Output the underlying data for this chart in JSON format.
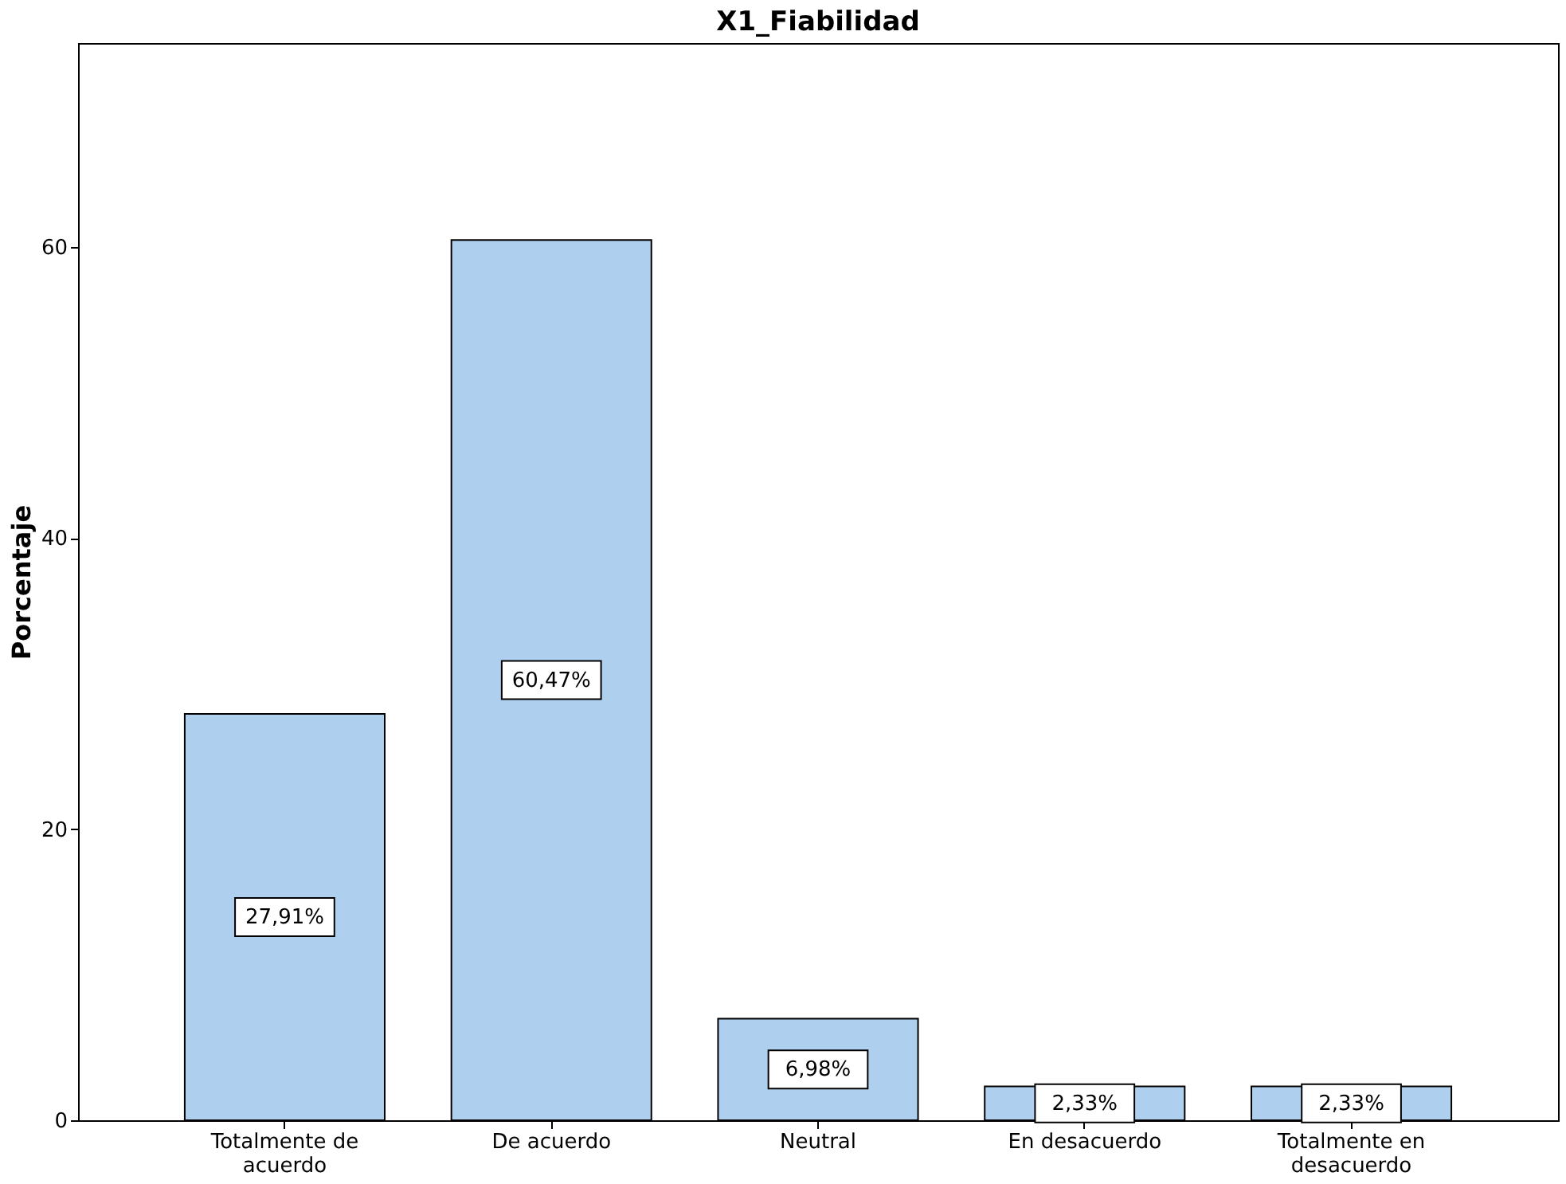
{
  "chart_data": {
    "type": "bar",
    "title": "X1_Fiabilidad",
    "ylabel": "Porcentaje",
    "categories": [
      "Totalmente de acuerdo",
      "De acuerdo",
      "Neutral",
      "En desacuerdo",
      "Totalmente en desacuerdo"
    ],
    "values": [
      27.91,
      60.47,
      6.98,
      2.33,
      2.33
    ],
    "value_labels": [
      "27,91%",
      "60,47%",
      "6,98%",
      "2,33%",
      "2,33%"
    ],
    "color": "#aed0ee",
    "ylim": [
      0,
      74
    ],
    "yticks": [
      0,
      20,
      40,
      60
    ],
    "grid": false
  }
}
